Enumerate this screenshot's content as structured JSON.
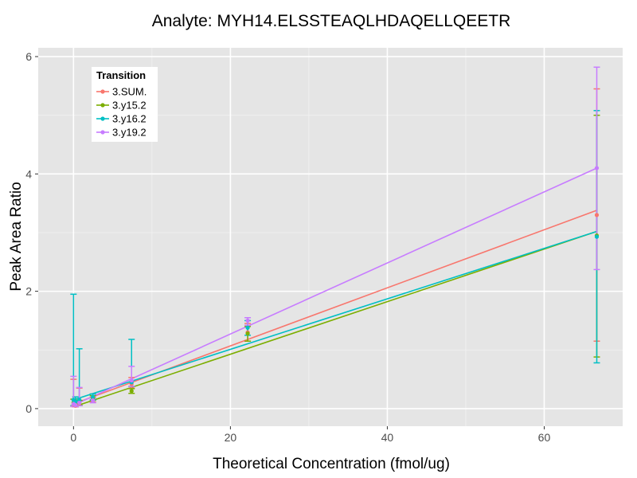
{
  "chart_data": {
    "type": "scatter",
    "title": "Analyte: MYH14.ELSSTEAQLHDAQELLQEETR",
    "xlabel": "Theoretical Concentration (fmol/ug)",
    "ylabel": "Peak Area Ratio",
    "xlim": [
      -4.5,
      70
    ],
    "ylim": [
      -0.3,
      6.15
    ],
    "x_ticks": [
      0,
      20,
      40,
      60
    ],
    "y_ticks": [
      0,
      2,
      4,
      6
    ],
    "grid": true,
    "legend": {
      "title": "Transition",
      "position": "top-left"
    },
    "series": [
      {
        "name": "3.SUM.",
        "color": "#F8766D",
        "points": [
          {
            "x": 0,
            "y": 0.07,
            "lo": 0.04,
            "hi": 0.5
          },
          {
            "x": 0.25,
            "y": 0.05,
            "lo": 0.03,
            "hi": 0.1
          },
          {
            "x": 0.74,
            "y": 0.09,
            "lo": 0.05,
            "hi": 0.35
          },
          {
            "x": 2.47,
            "y": 0.15,
            "lo": 0.11,
            "hi": 0.19
          },
          {
            "x": 7.4,
            "y": 0.42,
            "lo": 0.35,
            "hi": 0.53
          },
          {
            "x": 22.2,
            "y": 1.3,
            "lo": 1.15,
            "hi": 1.45
          },
          {
            "x": 66.7,
            "y": 3.3,
            "lo": 1.15,
            "hi": 5.45
          }
        ],
        "fit": [
          [
            0,
            0.08
          ],
          [
            66.7,
            3.38
          ]
        ]
      },
      {
        "name": "3.y15.2",
        "color": "#7CAE00",
        "points": [
          {
            "x": 0,
            "y": 0.1,
            "lo": 0.05,
            "hi": 0.16
          },
          {
            "x": 0.25,
            "y": 0.08,
            "lo": 0.05,
            "hi": 0.12
          },
          {
            "x": 0.74,
            "y": 0.1,
            "lo": 0.06,
            "hi": 0.14
          },
          {
            "x": 2.47,
            "y": 0.18,
            "lo": 0.14,
            "hi": 0.22
          },
          {
            "x": 7.4,
            "y": 0.3,
            "lo": 0.26,
            "hi": 0.34
          },
          {
            "x": 22.2,
            "y": 1.28,
            "lo": 1.15,
            "hi": 1.4
          },
          {
            "x": 66.7,
            "y": 2.95,
            "lo": 0.88,
            "hi": 5.0
          }
        ],
        "fit": [
          [
            0,
            0.03
          ],
          [
            66.7,
            3.02
          ]
        ]
      },
      {
        "name": "3.y16.2",
        "color": "#00BFC4",
        "points": [
          {
            "x": 0,
            "y": 0.15,
            "lo": 0.05,
            "hi": 1.95
          },
          {
            "x": 0.25,
            "y": 0.12,
            "lo": 0.05,
            "hi": 0.2
          },
          {
            "x": 0.74,
            "y": 0.15,
            "lo": 0.05,
            "hi": 1.02
          },
          {
            "x": 2.47,
            "y": 0.2,
            "lo": 0.15,
            "hi": 0.25
          },
          {
            "x": 7.4,
            "y": 0.45,
            "lo": 0.38,
            "hi": 1.18
          },
          {
            "x": 22.2,
            "y": 1.38,
            "lo": 1.25,
            "hi": 1.5
          },
          {
            "x": 66.7,
            "y": 2.93,
            "lo": 0.78,
            "hi": 5.08
          }
        ],
        "fit": [
          [
            0,
            0.15
          ],
          [
            66.7,
            3.02
          ]
        ]
      },
      {
        "name": "3.y19.2",
        "color": "#C77CFF",
        "points": [
          {
            "x": 0,
            "y": 0.08,
            "lo": 0.04,
            "hi": 0.55
          },
          {
            "x": 0.25,
            "y": 0.06,
            "lo": 0.03,
            "hi": 0.12
          },
          {
            "x": 0.74,
            "y": 0.1,
            "lo": 0.05,
            "hi": 0.36
          },
          {
            "x": 2.47,
            "y": 0.14,
            "lo": 0.1,
            "hi": 0.18
          },
          {
            "x": 7.4,
            "y": 0.48,
            "lo": 0.38,
            "hi": 0.72
          },
          {
            "x": 22.2,
            "y": 1.5,
            "lo": 1.42,
            "hi": 1.55
          },
          {
            "x": 66.7,
            "y": 4.1,
            "lo": 2.37,
            "hi": 5.82
          }
        ],
        "fit": [
          [
            0,
            0.06
          ],
          [
            66.7,
            4.1
          ]
        ]
      }
    ]
  }
}
